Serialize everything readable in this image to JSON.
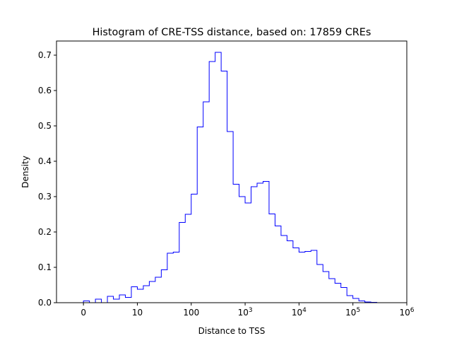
{
  "chart_data": {
    "type": "histogram",
    "title": "Histogram of CRE-TSS distance, based on: 17859 CREs",
    "xlabel": "Distance to TSS",
    "ylabel": "Density",
    "xscale": "symlog",
    "xlim_units": [
      -0.5,
      6
    ],
    "ylim": [
      0,
      0.74
    ],
    "x_ticks": [
      {
        "value": 0,
        "label": "0",
        "sup": ""
      },
      {
        "value": 10,
        "label": "10",
        "sup": ""
      },
      {
        "value": 100,
        "label": "100",
        "sup": ""
      },
      {
        "value": 1000,
        "label": "10",
        "sup": "3"
      },
      {
        "value": 10000,
        "label": "10",
        "sup": "4"
      },
      {
        "value": 100000,
        "label": "10",
        "sup": "5"
      },
      {
        "value": 1000000,
        "label": "10",
        "sup": "6"
      }
    ],
    "y_ticks": [
      {
        "value": 0.0,
        "label": "0.0"
      },
      {
        "value": 0.1,
        "label": "0.1"
      },
      {
        "value": 0.2,
        "label": "0.2"
      },
      {
        "value": 0.3,
        "label": "0.3"
      },
      {
        "value": 0.4,
        "label": "0.4"
      },
      {
        "value": 0.5,
        "label": "0.5"
      },
      {
        "value": 0.6,
        "label": "0.6"
      },
      {
        "value": 0.7,
        "label": "0.7"
      }
    ],
    "grid": false,
    "style": "step",
    "line_color": "#0000ff",
    "bin_start_unit": 0,
    "bin_width_unit": 0.1111,
    "densities": [
      0.005,
      0.0,
      0.01,
      0.0,
      0.018,
      0.01,
      0.022,
      0.015,
      0.045,
      0.038,
      0.048,
      0.06,
      0.072,
      0.093,
      0.14,
      0.143,
      0.227,
      0.25,
      0.307,
      0.497,
      0.568,
      0.682,
      0.708,
      0.655,
      0.484,
      0.335,
      0.3,
      0.282,
      0.328,
      0.338,
      0.343,
      0.251,
      0.217,
      0.19,
      0.175,
      0.155,
      0.143,
      0.145,
      0.148,
      0.108,
      0.088,
      0.068,
      0.055,
      0.043,
      0.02,
      0.012,
      0.005,
      0.002,
      0.001,
      0.0
    ]
  }
}
